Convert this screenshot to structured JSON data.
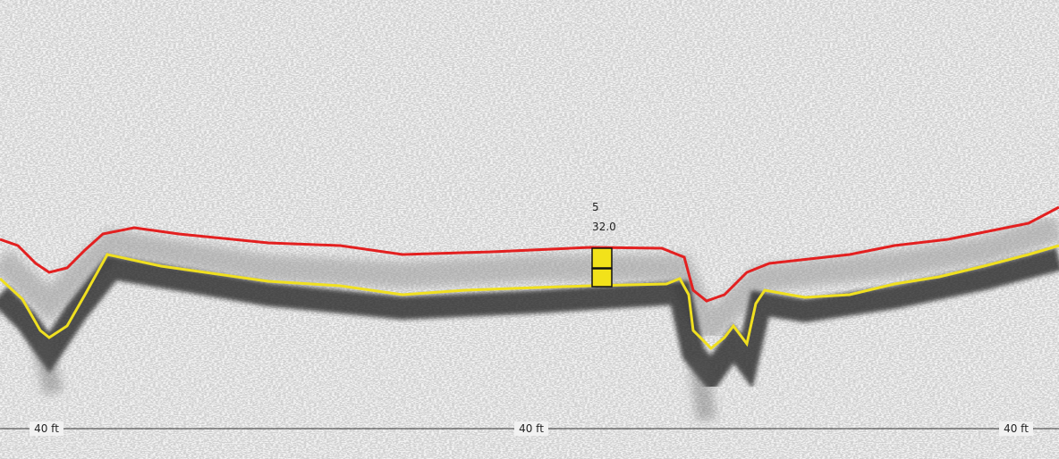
{
  "marker": {
    "label": "5",
    "value": "32.0"
  },
  "depth_line": {
    "labels": [
      "40 ft",
      "40 ft",
      "40 ft"
    ]
  }
}
